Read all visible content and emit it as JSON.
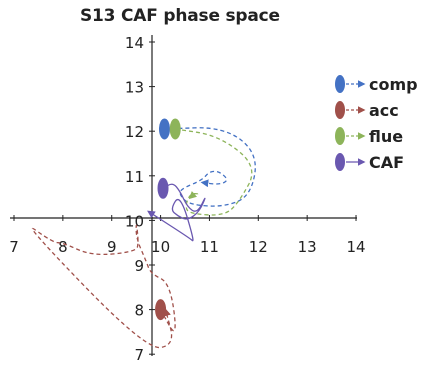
{
  "chart_data": {
    "type": "line",
    "title": "S13 CAF phase space",
    "xlabel": "",
    "ylabel": "",
    "xlim": [
      7,
      14
    ],
    "ylim": [
      7,
      14
    ],
    "x_ticks": [
      "7",
      "8",
      "9",
      "10",
      "11",
      "12",
      "13",
      "14"
    ],
    "y_ticks": [
      "7",
      "8",
      "9",
      "10",
      "11",
      "12",
      "13",
      "14"
    ],
    "legend_position": "right",
    "series": [
      {
        "name": "comp",
        "color": "#4472C4",
        "line_style": "dashed",
        "points": [
          [
            10.08,
            12.05
          ],
          [
            11.3,
            12.1
          ],
          [
            12.0,
            11.5
          ],
          [
            11.85,
            10.55
          ],
          [
            11.3,
            10.3
          ],
          [
            10.6,
            10.35
          ],
          [
            10.4,
            10.55
          ],
          [
            10.4,
            10.7
          ],
          [
            10.85,
            10.9
          ],
          [
            11.0,
            11.1
          ],
          [
            11.2,
            11.1
          ],
          [
            11.4,
            10.9
          ],
          [
            11.2,
            10.8
          ],
          [
            10.85,
            10.85
          ]
        ]
      },
      {
        "name": "acc",
        "color": "#A0504A",
        "line_style": "dashed",
        "points": [
          [
            10.0,
            8.0
          ],
          [
            10.35,
            7.3
          ],
          [
            10.2,
            8.6
          ],
          [
            9.8,
            8.8
          ],
          [
            9.7,
            9.1
          ],
          [
            9.5,
            9.6
          ],
          [
            9.5,
            10.0
          ],
          [
            9.55,
            9.5
          ],
          [
            9.5,
            9.3
          ],
          [
            8.6,
            9.2
          ],
          [
            8.0,
            9.5
          ],
          [
            7.8,
            9.5
          ],
          [
            7.1,
            10.05
          ],
          [
            9.7,
            7.1
          ],
          [
            10.3,
            7.2
          ],
          [
            10.1,
            8.0
          ]
        ]
      },
      {
        "name": "flue",
        "color": "#8DB45A",
        "line_style": "dashed",
        "points": [
          [
            10.3,
            12.05
          ],
          [
            11.2,
            11.9
          ],
          [
            12.0,
            11.2
          ],
          [
            11.6,
            10.4
          ],
          [
            11.3,
            10.1
          ],
          [
            10.6,
            10.15
          ],
          [
            10.5,
            10.3
          ],
          [
            10.6,
            10.6
          ],
          [
            10.8,
            10.6
          ],
          [
            10.65,
            10.55
          ],
          [
            10.6,
            10.5
          ]
        ]
      },
      {
        "name": "CAF",
        "color": "#6A58B0",
        "line_style": "solid",
        "points": [
          [
            10.05,
            10.72
          ],
          [
            10.25,
            10.85
          ],
          [
            10.4,
            10.65
          ],
          [
            10.55,
            10.3
          ],
          [
            10.75,
            10.15
          ],
          [
            10.95,
            10.6
          ],
          [
            10.8,
            10.2
          ],
          [
            10.55,
            10.0
          ],
          [
            10.35,
            10.1
          ],
          [
            10.2,
            10.25
          ],
          [
            10.4,
            10.6
          ],
          [
            10.7,
            9.5
          ],
          [
            10.6,
            9.6
          ],
          [
            9.75,
            10.2
          ]
        ]
      }
    ]
  }
}
